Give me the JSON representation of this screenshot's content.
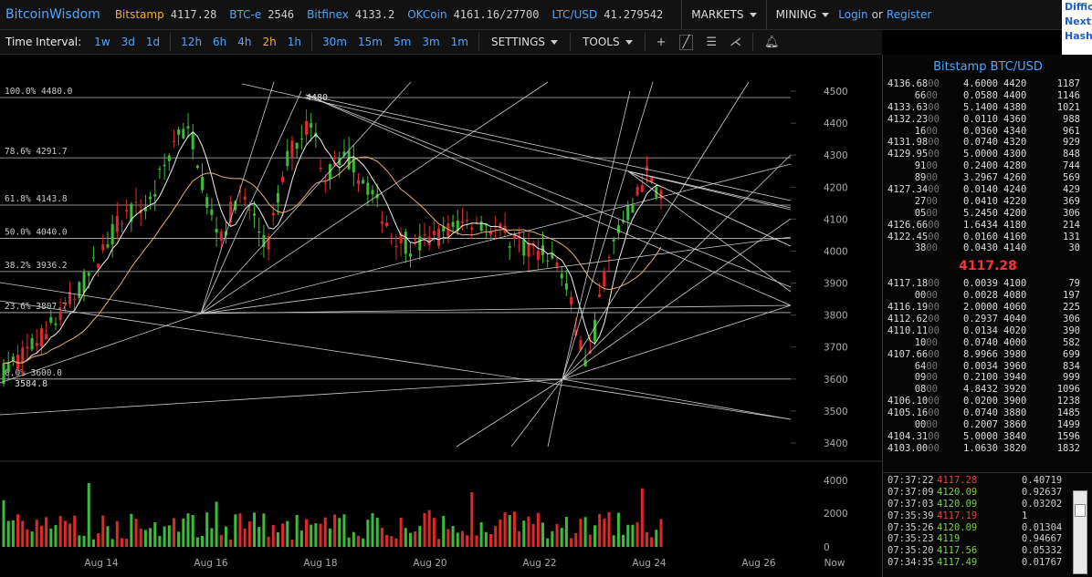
{
  "header": {
    "brand": "BitcoinWisdom",
    "markets": [
      {
        "name": "Bitstamp",
        "value": "4117.28",
        "color": "orange"
      },
      {
        "name": "BTC-e",
        "value": "2546",
        "color": "blue"
      },
      {
        "name": "Bitfinex",
        "value": "4133.2",
        "color": "blue"
      },
      {
        "name": "OKCoin",
        "value": "4161.16/27700",
        "color": "blue"
      },
      {
        "name": "LTC/USD",
        "value": "41.279542",
        "color": "blue"
      }
    ],
    "markets_menu": "MARKETS",
    "mining_menu": "MINING",
    "login": "Login",
    "or": "or",
    "register": "Register"
  },
  "side_panel": {
    "lines": [
      "Diffic",
      "Next:",
      "Hash"
    ]
  },
  "toolbar": {
    "time_interval_label": "Time Interval:",
    "intervals_a": [
      "1w",
      "3d",
      "1d"
    ],
    "intervals_b": [
      "12h",
      "6h",
      "4h",
      "2h",
      "1h"
    ],
    "intervals_c": [
      "30m",
      "15m",
      "5m",
      "3m",
      "1m"
    ],
    "active_interval": "2h",
    "settings": "SETTINGS",
    "tools": "TOOLS"
  },
  "chart_data": {
    "type": "candlestick",
    "price_ticks": [
      3400,
      3500,
      3600,
      3700,
      3800,
      3900,
      4000,
      4100,
      4200,
      4300,
      4400,
      4500
    ],
    "volume_ticks": [
      "4000",
      "2000",
      "0"
    ],
    "date_labels": [
      "Aug 14",
      "Aug 16",
      "Aug 18",
      "Aug 20",
      "Aug 22",
      "Aug 24",
      "Aug 26",
      "Now"
    ],
    "fib_levels": [
      {
        "label": "100.0% 4480.0",
        "price": 4480.0
      },
      {
        "label": "78.6% 4291.7",
        "price": 4291.7
      },
      {
        "label": "61.8% 4143.8",
        "price": 4143.8
      },
      {
        "label": "50.0% 4040.0",
        "price": 4040.0
      },
      {
        "label": "38.2% 3936.2",
        "price": 3936.2
      },
      {
        "label": "23.6% 3807.7",
        "price": 3807.7
      },
      {
        "label": "0.0% 3600.0",
        "price": 3600.0
      }
    ],
    "high_marker": "4480",
    "low_marker": "3584.8",
    "price_range": [
      3320,
      4560
    ]
  },
  "orderbook": {
    "title": "Bitstamp BTC/USD",
    "asks": [
      [
        "4136.68",
        "00",
        "4.6000",
        "4420",
        "1187"
      ],
      [
        "66",
        "00",
        "0.0580",
        "4400",
        "1146"
      ],
      [
        "4133.63",
        "00",
        "5.1400",
        "4380",
        "1021"
      ],
      [
        "4132.23",
        "00",
        "0.0110",
        "4360",
        "988"
      ],
      [
        "16",
        "00",
        "0.0360",
        "4340",
        "961"
      ],
      [
        "4131.98",
        "00",
        "0.0740",
        "4320",
        "929"
      ],
      [
        "4129.95",
        "00",
        "5.0000",
        "4300",
        "848"
      ],
      [
        "91",
        "00",
        "0.2400",
        "4280",
        "744"
      ],
      [
        "89",
        "00",
        "3.2967",
        "4260",
        "569"
      ],
      [
        "4127.34",
        "00",
        "0.0140",
        "4240",
        "429"
      ],
      [
        "27",
        "00",
        "0.0410",
        "4220",
        "369"
      ],
      [
        "05",
        "00",
        "5.2450",
        "4200",
        "306"
      ],
      [
        "4126.66",
        "00",
        "1.6434",
        "4180",
        "214"
      ],
      [
        "4122.45",
        "00",
        "0.0160",
        "4160",
        "131"
      ],
      [
        "38",
        "00",
        "0.0430",
        "4140",
        "30"
      ]
    ],
    "last_price": "4117.28",
    "bids": [
      [
        "4117.18",
        "00",
        "0.0039",
        "4100",
        "79"
      ],
      [
        "00",
        "00",
        "0.0028",
        "4080",
        "197"
      ],
      [
        "4116.19",
        "00",
        "2.0000",
        "4060",
        "225"
      ],
      [
        "4112.62",
        "00",
        "0.2937",
        "4040",
        "306"
      ],
      [
        "4110.11",
        "00",
        "0.0134",
        "4020",
        "390"
      ],
      [
        "10",
        "00",
        "0.0740",
        "4000",
        "582"
      ],
      [
        "4107.66",
        "00",
        "8.9966",
        "3980",
        "699"
      ],
      [
        "64",
        "00",
        "0.0034",
        "3960",
        "834"
      ],
      [
        "09",
        "00",
        "0.2100",
        "3940",
        "999"
      ],
      [
        "08",
        "00",
        "4.8432",
        "3920",
        "1096"
      ],
      [
        "4106.10",
        "00",
        "0.0200",
        "3900",
        "1238"
      ],
      [
        "4105.16",
        "00",
        "0.0740",
        "3880",
        "1485"
      ],
      [
        "00",
        "00",
        "0.2007",
        "3860",
        "1499"
      ],
      [
        "4104.31",
        "00",
        "5.0000",
        "3840",
        "1596"
      ],
      [
        "4103.00",
        "00",
        "1.0630",
        "3820",
        "1832"
      ]
    ]
  },
  "trades": [
    {
      "time": "07:37:22",
      "price": "4117.28",
      "dir": "dn",
      "amount": "0.40719"
    },
    {
      "time": "07:37:09",
      "price": "4120.09",
      "dir": "up",
      "amount": "0.92637"
    },
    {
      "time": "07:37:03",
      "price": "4120.09",
      "dir": "up",
      "amount": "0.03202"
    },
    {
      "time": "07:35:39",
      "price": "4117.19",
      "dir": "dn",
      "amount": "1"
    },
    {
      "time": "07:35:26",
      "price": "4120.09",
      "dir": "up",
      "amount": "0.01304"
    },
    {
      "time": "07:35:23",
      "price": "4119",
      "dir": "up",
      "amount": "0.94667"
    },
    {
      "time": "07:35:20",
      "price": "4117.56",
      "dir": "up",
      "amount": "0.05332"
    },
    {
      "time": "07:34:35",
      "price": "4117.49",
      "dir": "up",
      "amount": "0.01767"
    }
  ]
}
